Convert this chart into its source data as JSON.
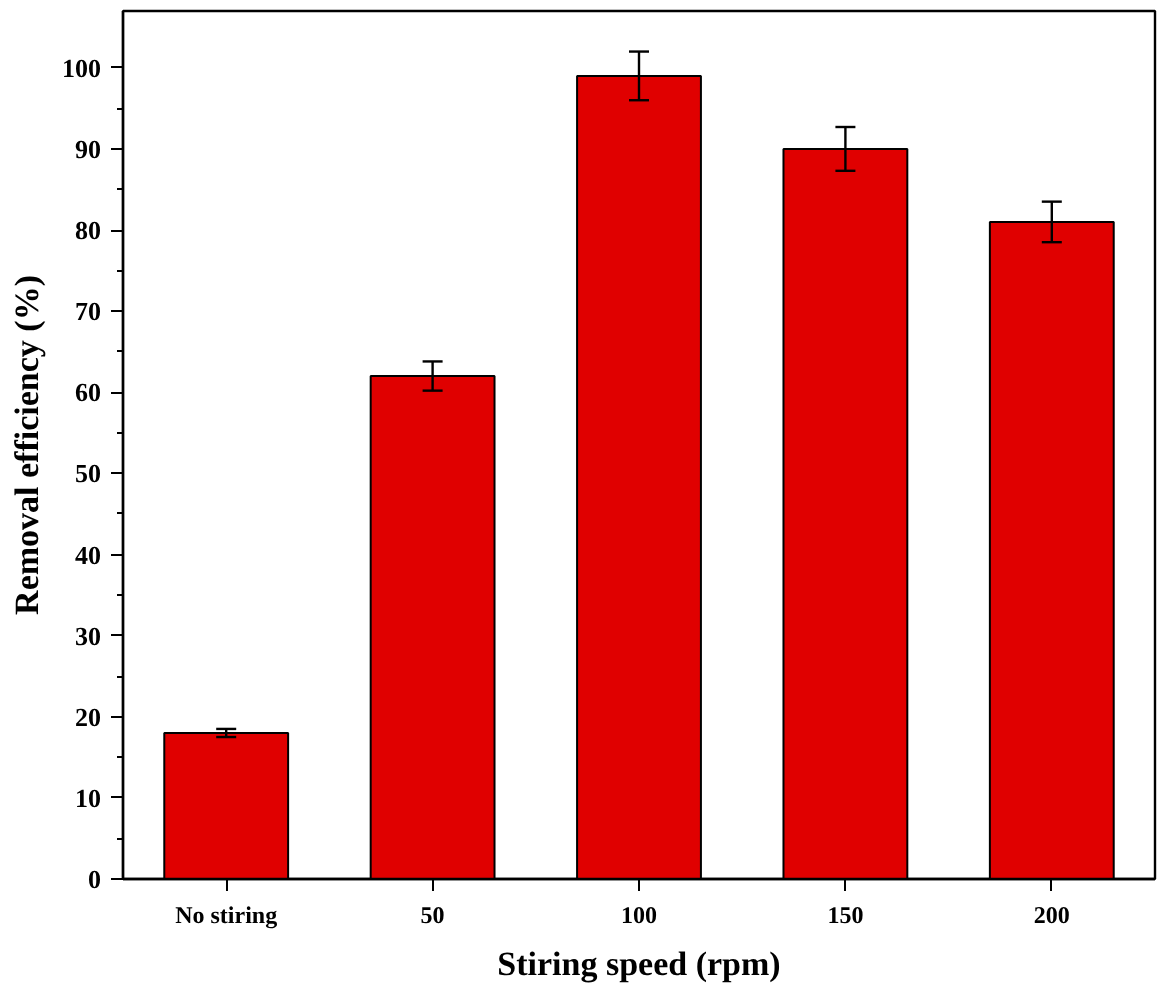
{
  "chart_data": {
    "type": "bar",
    "xlabel": "Stiring speed (rpm)",
    "ylabel": "Removal efficiency (%)",
    "categories": [
      "No stiring",
      "50",
      "100",
      "150",
      "200"
    ],
    "values": [
      18,
      62,
      99,
      90,
      81
    ],
    "errors": [
      0.5,
      1.8,
      3,
      2.7,
      2.5
    ],
    "color": "#e00000",
    "ylim": [
      0,
      107
    ],
    "yticks": [
      0,
      10,
      20,
      30,
      40,
      50,
      60,
      70,
      80,
      90,
      100
    ],
    "grid": false
  }
}
